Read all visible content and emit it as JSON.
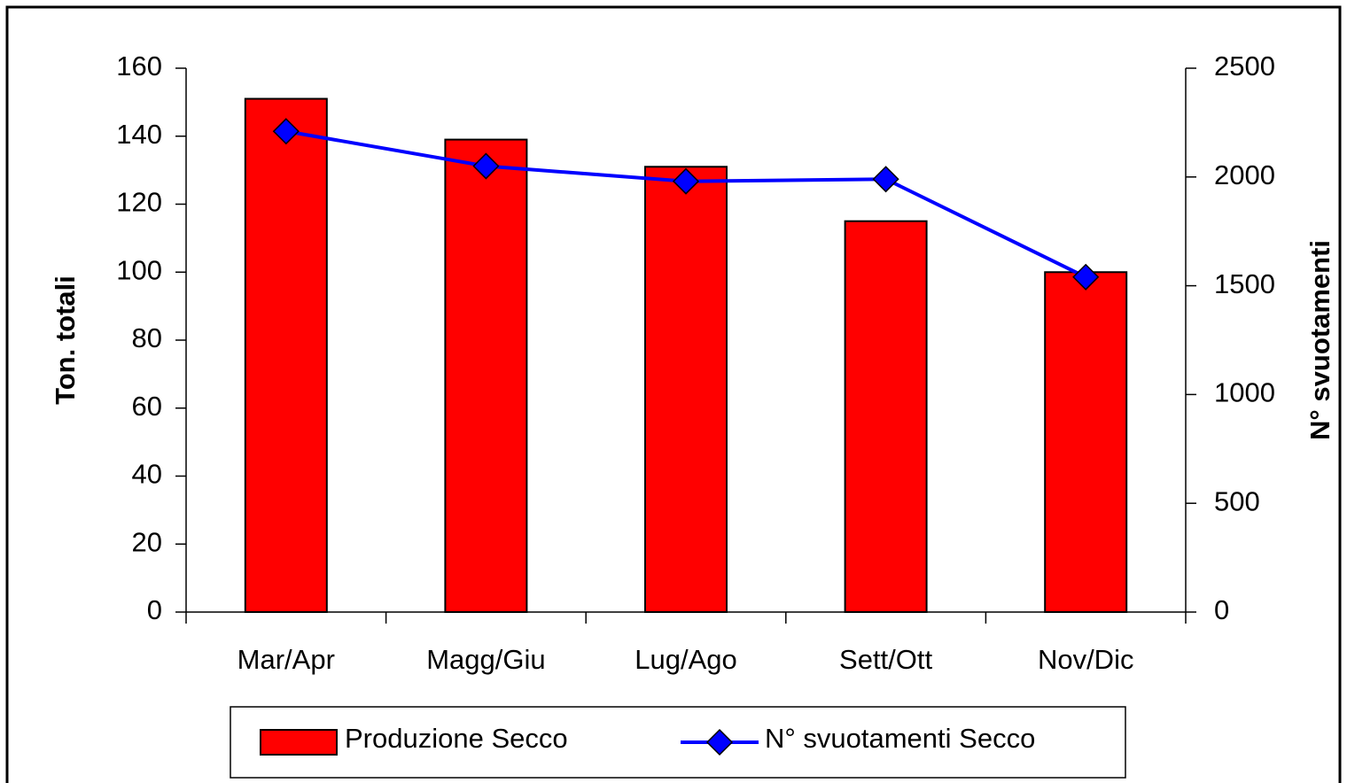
{
  "chart_data": {
    "type": "bar",
    "categories": [
      "Mar/Apr",
      "Magg/Giu",
      "Lug/Ago",
      "Sett/Ott",
      "Nov/Dic"
    ],
    "series": [
      {
        "name": "Produzione Secco",
        "type": "bar",
        "color": "#ff0000",
        "values": [
          151,
          139,
          131,
          115,
          100
        ]
      },
      {
        "name": "N° svuotamenti Secco",
        "type": "line",
        "axis": "y2",
        "color": "#0000ff",
        "marker_color": "#0000ff",
        "values": [
          2210,
          2050,
          1980,
          1990,
          1540
        ]
      }
    ],
    "y_label": "Ton. totali",
    "y2_label": "N° svuotamenti",
    "ylim": [
      0,
      160
    ],
    "yticks": [
      0,
      20,
      40,
      60,
      80,
      100,
      120,
      140,
      160
    ],
    "y2lim": [
      0,
      2500
    ],
    "y2ticks": [
      0,
      500,
      1000,
      1500,
      2000,
      2500
    ],
    "legend": "bottom",
    "grid": false
  }
}
